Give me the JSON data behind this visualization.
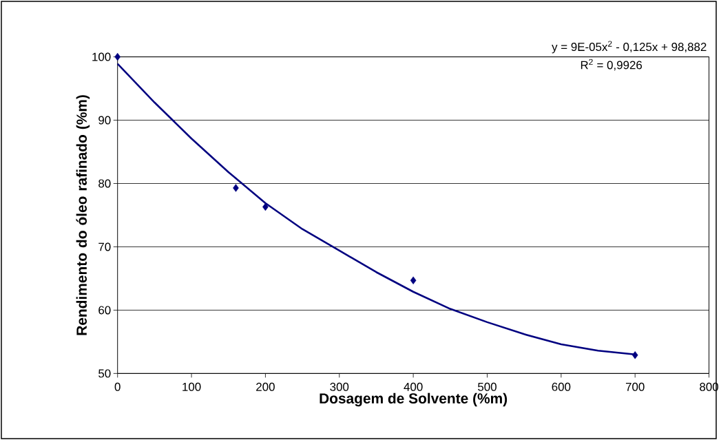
{
  "chart_data": {
    "type": "scatter",
    "xlabel": "Dosagem de Solvente (%m)",
    "ylabel": "Rendimento do óleo rafinado (%m)",
    "annotations": [
      "y = 9E-05x$^{2}$ - 0,125x + 98,882",
      "R$^{2}$ = 0,9926"
    ],
    "x": [
      0,
      160,
      200,
      400,
      700
    ],
    "series": [
      {
        "color": "#000080",
        "marker": "diamond",
        "values": [
          100,
          79.3,
          76.3,
          64.7,
          52.9
        ]
      },
      {
        "type": "line",
        "color": "#000080",
        "line_style": "solid",
        "x": [
          0,
          50,
          100,
          150,
          200,
          250,
          300,
          350,
          400,
          450,
          500,
          550,
          600,
          650,
          700
        ],
        "values": [
          98.9,
          92.8,
          87.1,
          81.8,
          76.9,
          72.8,
          69.4,
          66.0,
          62.9,
          60.2,
          58.1,
          56.2,
          54.6,
          53.6,
          53.0
        ]
      }
    ],
    "xlim": [
      0,
      800
    ],
    "ylim": [
      50,
      100
    ],
    "xticks": [
      0,
      100,
      200,
      300,
      400,
      500,
      600,
      700,
      800
    ],
    "yticks": [
      50,
      60,
      70,
      80,
      90,
      100
    ],
    "grid": "y"
  }
}
